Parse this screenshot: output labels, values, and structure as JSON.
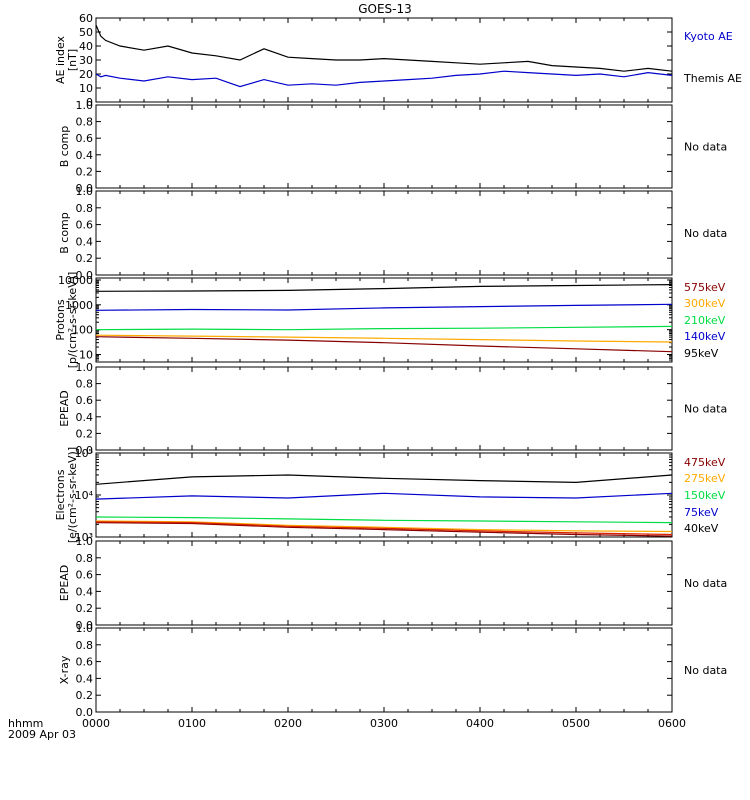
{
  "title": "GOES-13",
  "time_axis": {
    "corner_label_1": "hhmm",
    "corner_label_2": "2009 Apr 03",
    "ticks": [
      "0000",
      "0100",
      "0200",
      "0300",
      "0400",
      "0500",
      "0600"
    ]
  },
  "colors": {
    "black": "#000000",
    "blue": "#0000cc",
    "green": "#00dd44",
    "orange": "#ffaa00",
    "darkred": "#880000",
    "red": "#dd2200"
  },
  "chart_data": [
    {
      "type": "line",
      "panel": "ae",
      "ylabel": [
        "AE index",
        "[nT]"
      ],
      "ylim": [
        0,
        60
      ],
      "ticks": [
        0,
        10,
        20,
        30,
        40,
        50,
        60
      ],
      "x": [
        0,
        0.05,
        0.1,
        0.25,
        0.5,
        0.75,
        1,
        1.25,
        1.5,
        1.75,
        2,
        2.25,
        2.5,
        2.75,
        3,
        3.25,
        3.5,
        3.75,
        4,
        4.25,
        4.5,
        4.75,
        5,
        5.25,
        5.5,
        5.75,
        6
      ],
      "series": [
        {
          "name": "Kyoto AE",
          "color": "blue",
          "values": [
            20,
            18,
            19,
            17,
            15,
            18,
            16,
            17,
            11,
            16,
            12,
            13,
            12,
            14,
            15,
            16,
            17,
            19,
            20,
            22,
            21,
            20,
            19,
            20,
            18,
            21,
            19
          ]
        },
        {
          "name": "Themis AE",
          "color": "black",
          "values": [
            55,
            47,
            44,
            40,
            37,
            40,
            35,
            33,
            30,
            38,
            32,
            31,
            30,
            30,
            31,
            30,
            29,
            28,
            27,
            28,
            29,
            26,
            25,
            24,
            22,
            24,
            22
          ]
        }
      ]
    },
    {
      "type": "line",
      "panel": "bcomp1",
      "ylabel": [
        "B comp"
      ],
      "ylim": [
        0,
        1
      ],
      "ticks": [
        0.0,
        0.2,
        0.4,
        0.6,
        0.8,
        1.0
      ],
      "note": "No data",
      "series": []
    },
    {
      "type": "line",
      "panel": "bcomp2",
      "ylabel": [
        "B comp"
      ],
      "ylim": [
        0,
        1
      ],
      "ticks": [
        0.0,
        0.2,
        0.4,
        0.6,
        0.8,
        1.0
      ],
      "note": "No data",
      "series": []
    },
    {
      "type": "line",
      "panel": "protons",
      "scale": "log",
      "ylabel": [
        "Protons",
        "[p/(cm²-s-sr-keV)]"
      ],
      "ylim": [
        5,
        12000
      ],
      "ticks": [
        10,
        100,
        1000,
        10000
      ],
      "tick_labels": [
        "10",
        "100",
        "1000",
        "10000"
      ],
      "x": [
        0,
        1,
        2,
        3,
        4,
        5,
        6
      ],
      "series": [
        {
          "name": "575keV",
          "color": "darkred",
          "values": [
            52,
            45,
            38,
            30,
            22,
            17,
            13
          ]
        },
        {
          "name": "300keV",
          "color": "orange",
          "values": [
            60,
            55,
            50,
            45,
            40,
            35,
            32
          ]
        },
        {
          "name": "210keV",
          "color": "green",
          "values": [
            100,
            105,
            100,
            110,
            115,
            125,
            135
          ]
        },
        {
          "name": "140keV",
          "color": "blue",
          "values": [
            600,
            650,
            620,
            750,
            850,
            950,
            1050
          ]
        },
        {
          "name": "95keV",
          "color": "black",
          "values": [
            3500,
            3600,
            3800,
            4500,
            5500,
            6000,
            6500
          ]
        }
      ]
    },
    {
      "type": "line",
      "panel": "epead1",
      "ylabel": [
        "EPEAD"
      ],
      "ylim": [
        0,
        1
      ],
      "ticks": [
        0.0,
        0.2,
        0.4,
        0.6,
        0.8,
        1.0
      ],
      "note": "No data",
      "series": []
    },
    {
      "type": "line",
      "panel": "electrons",
      "scale": "log",
      "ylabel": [
        "Electrons",
        "[e/(cm²-s-sr-keV)]"
      ],
      "ylim": [
        1000,
        100000
      ],
      "ticks": [
        1000,
        10000,
        100000
      ],
      "tick_labels": [
        "10³",
        "10⁴",
        "10⁵"
      ],
      "x": [
        0,
        1,
        2,
        3,
        4,
        5,
        6
      ],
      "series": [
        {
          "name": "475keV",
          "color": "darkred",
          "values": [
            2200,
            2100,
            1700,
            1500,
            1300,
            1150,
            1050
          ]
        },
        {
          "name": "275keV",
          "color": "orange",
          "values": [
            2400,
            2300,
            1900,
            1700,
            1500,
            1400,
            1350
          ]
        },
        {
          "name": "150keV",
          "color": "green",
          "values": [
            3000,
            2900,
            2700,
            2500,
            2400,
            2300,
            2200
          ]
        },
        {
          "name": "75keV",
          "color": "blue",
          "values": [
            8000,
            9500,
            8500,
            11000,
            9000,
            8500,
            11000
          ]
        },
        {
          "name": "40keV",
          "color": "black",
          "values": [
            18000,
            27000,
            30000,
            25000,
            22000,
            20000,
            30000
          ]
        },
        {
          "name": "",
          "color": "red",
          "values": [
            2300,
            2200,
            1800,
            1600,
            1400,
            1250,
            1150
          ]
        }
      ]
    },
    {
      "type": "line",
      "panel": "epead2",
      "ylabel": [
        "EPEAD"
      ],
      "ylim": [
        0,
        1
      ],
      "ticks": [
        0.0,
        0.2,
        0.4,
        0.6,
        0.8,
        1.0
      ],
      "note": "No data",
      "series": []
    },
    {
      "type": "line",
      "panel": "xray",
      "ylabel": [
        "X-ray"
      ],
      "ylim": [
        0,
        1
      ],
      "ticks": [
        0.0,
        0.2,
        0.4,
        0.6,
        0.8,
        1.0
      ],
      "note": "No data",
      "series": []
    }
  ]
}
